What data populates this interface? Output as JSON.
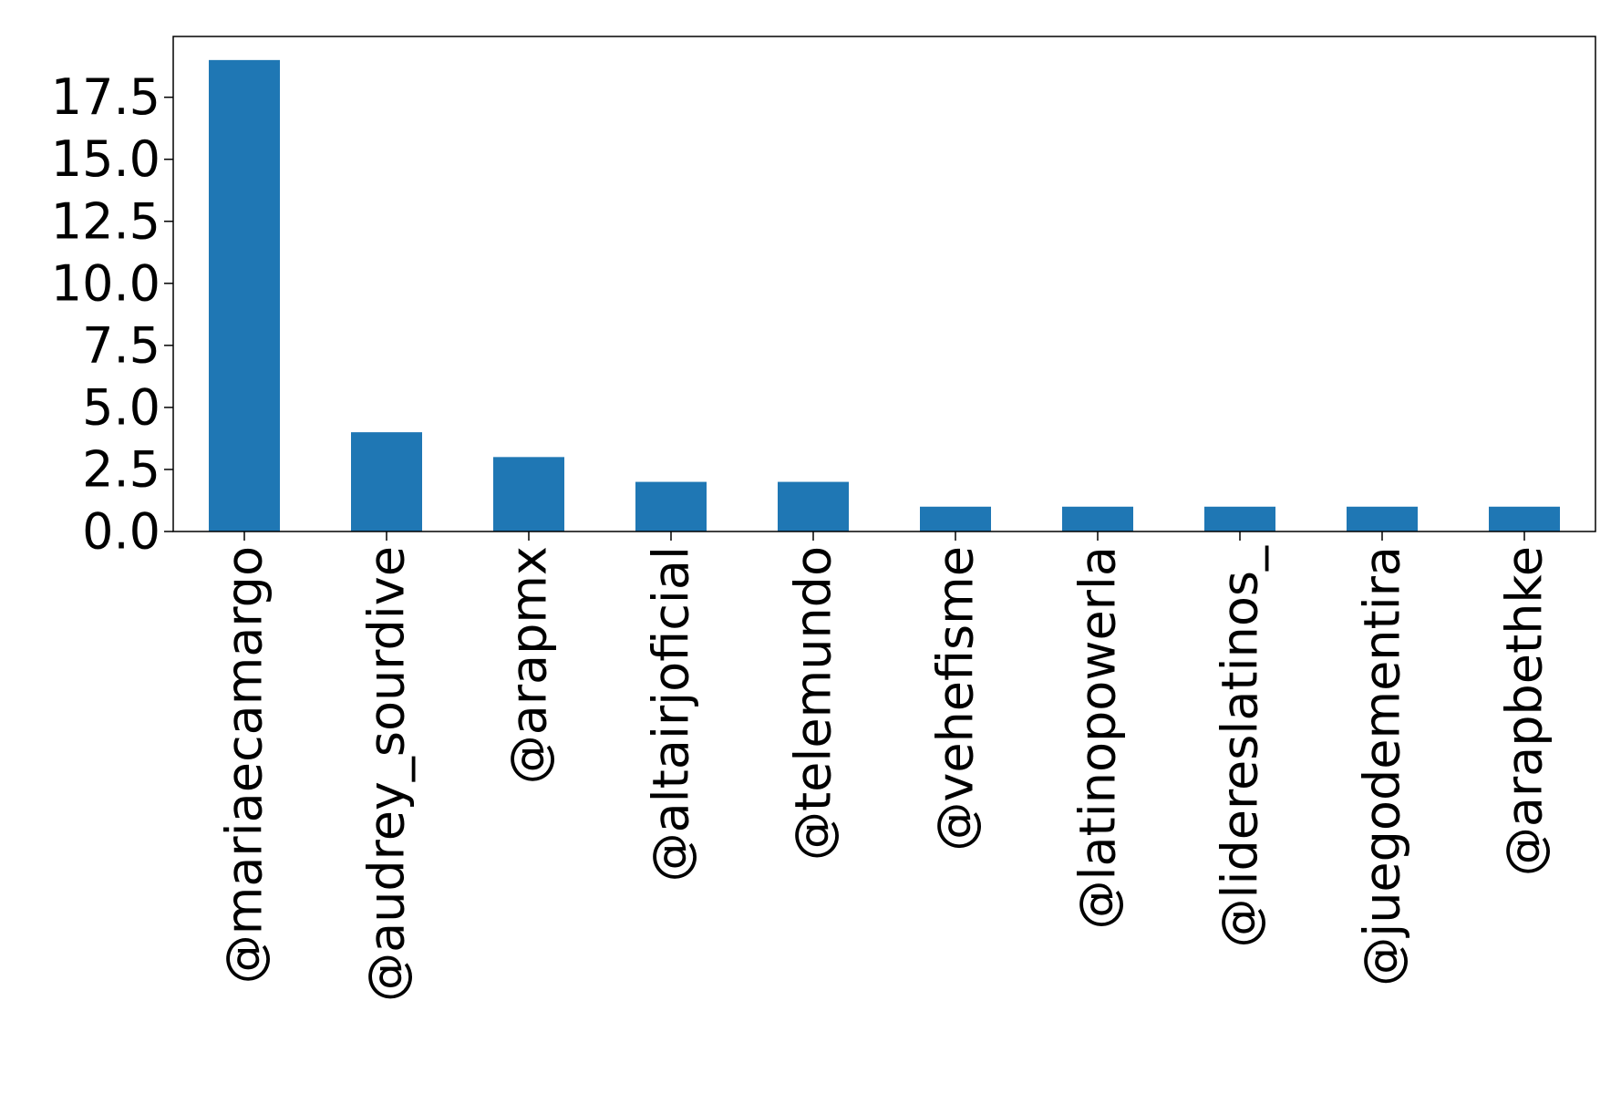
{
  "chart_data": {
    "type": "bar",
    "title": "",
    "xlabel": "",
    "ylabel": "",
    "categories": [
      "@mariaecamargo",
      "@audrey_sourdive",
      "@arapmx",
      "@altairjoficial",
      "@telemundo",
      "@vehefisme",
      "@latinopowerla",
      "@lidereslatinos_",
      "@juegodementira",
      "@arapbethke"
    ],
    "values": [
      19,
      4,
      3,
      2,
      2,
      1,
      1,
      1,
      1,
      1
    ],
    "ylim": [
      0,
      19.95
    ],
    "yticks": [
      0.0,
      2.5,
      5.0,
      7.5,
      10.0,
      12.5,
      15.0,
      17.5
    ],
    "ytick_labels": [
      "0.0",
      "2.5",
      "5.0",
      "7.5",
      "10.0",
      "12.5",
      "15.0",
      "17.5"
    ],
    "grid": false,
    "legend": "none",
    "bar_color": "#1f77b4",
    "axis_color": "#000000"
  }
}
